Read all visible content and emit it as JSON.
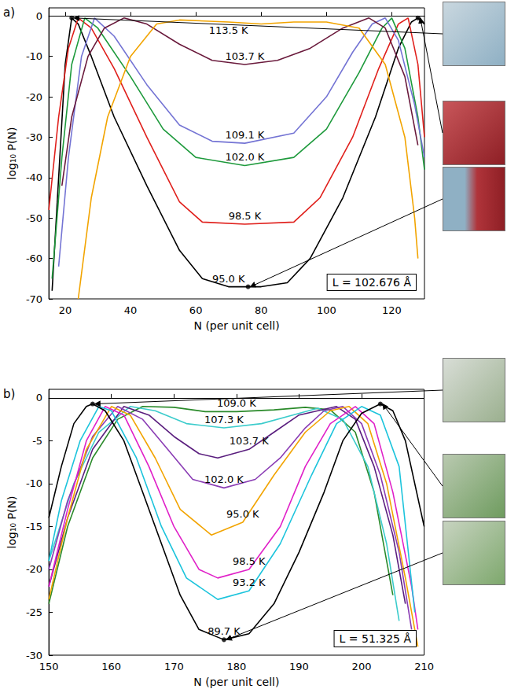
{
  "chart_data": [
    {
      "type": "line",
      "panel_label": "a)",
      "annotation": "L = 102.676 Å",
      "x_label": "N (per unit cell)",
      "y_label": "log₁₀ P(N)",
      "xlim": [
        15,
        130
      ],
      "xticks": [
        20,
        40,
        60,
        80,
        100,
        120
      ],
      "ylim": [
        -70,
        2
      ],
      "yticks": [
        -70,
        -60,
        -50,
        -40,
        -30,
        -20,
        -10,
        0
      ],
      "grid": false,
      "data_labels": false,
      "series": [
        {
          "name": "95.0 K",
          "color": "#000000",
          "line_style": "solid",
          "x": [
            16,
            18,
            20,
            22,
            24,
            28,
            35,
            45,
            55,
            62,
            70,
            80,
            88,
            95,
            105,
            115,
            122,
            126,
            128,
            130
          ],
          "values": [
            -68,
            -40,
            -12,
            -0.5,
            -2,
            -10,
            -25,
            -42,
            -58,
            -65,
            -67,
            -67,
            -66,
            -60,
            -45,
            -25,
            -8,
            -1.5,
            -0.5,
            -2
          ]
        },
        {
          "name": "98.5 K",
          "color": "#e0201c",
          "line_style": "solid",
          "x": [
            15,
            18,
            21,
            24,
            28,
            35,
            45,
            55,
            62,
            75,
            90,
            98,
            108,
            116,
            122,
            125,
            128,
            130
          ],
          "values": [
            -48,
            -25,
            -8,
            -0.5,
            -3,
            -13,
            -30,
            -46,
            -51,
            -51.5,
            -51,
            -45,
            -30,
            -13,
            -2,
            -0.5,
            -12,
            -30
          ]
        },
        {
          "name": "102.0 K",
          "color": "#1e9a3c",
          "line_style": "solid",
          "x": [
            16,
            19,
            22,
            26,
            30,
            40,
            50,
            60,
            75,
            90,
            100,
            110,
            117,
            120,
            124,
            128,
            130
          ],
          "values": [
            -65,
            -35,
            -12,
            -0.5,
            -3,
            -15,
            -28,
            -35,
            -37,
            -35,
            -28,
            -14,
            -3,
            -0.5,
            -8,
            -25,
            -38
          ]
        },
        {
          "name": "109.1 K",
          "color": "#7474d4",
          "line_style": "solid",
          "x": [
            18,
            21,
            25,
            29,
            35,
            45,
            55,
            65,
            75,
            90,
            100,
            108,
            114,
            118,
            122,
            127,
            130
          ],
          "values": [
            -62,
            -35,
            -10,
            -0.5,
            -5,
            -17,
            -27,
            -31,
            -31.5,
            -29,
            -20,
            -9,
            -2,
            -0.5,
            -6,
            -22,
            -35
          ]
        },
        {
          "name": "103.7 K",
          "color": "#6a1a3c",
          "line_style": "solid",
          "x": [
            19,
            22,
            27,
            32,
            38,
            45,
            55,
            65,
            75,
            85,
            95,
            105,
            113,
            118,
            124,
            128
          ],
          "values": [
            -42,
            -25,
            -10,
            -3,
            -0.5,
            -2,
            -7,
            -11,
            -12,
            -11,
            -8,
            -3,
            -0.5,
            -3,
            -15,
            -32
          ]
        },
        {
          "name": "113.5 K",
          "color": "#f2a400",
          "line_style": "solid",
          "x": [
            24,
            28,
            33,
            40,
            48,
            55,
            70,
            80,
            90,
            100,
            110,
            118,
            124,
            127,
            128
          ],
          "values": [
            -70,
            -45,
            -25,
            -10,
            -2,
            -1,
            -1.5,
            -2,
            -1.5,
            -1.5,
            -3,
            -12,
            -30,
            -50,
            -60
          ]
        }
      ],
      "points": {
        "color": "#000000",
        "marker": "circle",
        "x": [
          22,
          128,
          76
        ],
        "values": [
          -0.5,
          -0.5,
          -67
        ]
      }
    },
    {
      "type": "line",
      "panel_label": "b)",
      "annotation": "L = 51.325 Å",
      "x_label": "N (per unit cell)",
      "y_label": "log₁₀ P(N)",
      "xlim": [
        150,
        210
      ],
      "xticks": [
        150,
        160,
        170,
        180,
        190,
        200,
        210
      ],
      "ylim": [
        -30,
        1
      ],
      "yticks": [
        -30,
        -25,
        -20,
        -15,
        -10,
        -5,
        0
      ],
      "grid": false,
      "data_labels": false,
      "series": [
        {
          "name": "109.0 K",
          "color": "#2a8a2a",
          "line_style": "solid",
          "x": [
            150,
            153,
            157,
            161,
            165,
            170,
            175,
            180,
            186,
            191,
            195,
            199,
            202,
            205
          ],
          "values": [
            -24,
            -15,
            -7,
            -2.5,
            -1,
            -1.1,
            -1.6,
            -1.6,
            -1.4,
            -1.1,
            -1.4,
            -4,
            -11,
            -23
          ]
        },
        {
          "name": "107.3 K",
          "color": "#3ccccc",
          "line_style": "solid",
          "x": [
            150,
            154,
            158,
            163,
            167,
            172,
            178,
            184,
            189,
            193,
            197,
            201,
            204,
            206
          ],
          "values": [
            -19,
            -10,
            -4,
            -1,
            -1.5,
            -3,
            -3.5,
            -3,
            -2,
            -1.2,
            -2.5,
            -8,
            -17,
            -26
          ]
        },
        {
          "name": "103.7 K",
          "color": "#5a1e7e",
          "line_style": "solid",
          "x": [
            150,
            153,
            157,
            162,
            166,
            170,
            174,
            177,
            182,
            186,
            190,
            196,
            199,
            202,
            205,
            207
          ],
          "values": [
            -22,
            -14,
            -6,
            -1,
            -2,
            -4.5,
            -6.5,
            -7,
            -6,
            -4,
            -2,
            -1,
            -2.5,
            -8,
            -16,
            -24
          ]
        },
        {
          "name": "102.0 K",
          "color": "#8a3cb4",
          "line_style": "solid",
          "x": [
            150,
            153,
            157,
            161,
            165,
            169,
            173,
            178,
            183,
            187,
            191,
            194,
            197,
            200,
            203,
            206,
            208
          ],
          "values": [
            -20,
            -12,
            -4.5,
            -1,
            -2.5,
            -6,
            -9.5,
            -10.5,
            -9.5,
            -7,
            -3.5,
            -1.5,
            -1,
            -3,
            -9,
            -18,
            -27
          ]
        },
        {
          "name": "95.0 K",
          "color": "#f2a400",
          "line_style": "solid",
          "x": [
            150,
            153,
            156,
            160,
            163,
            167,
            171,
            176,
            181,
            186,
            191,
            195,
            198,
            201,
            204,
            207,
            209
          ],
          "values": [
            -23.5,
            -14,
            -6,
            -1,
            -2,
            -7,
            -13,
            -16,
            -14.5,
            -9,
            -4,
            -1.5,
            -1,
            -3,
            -10,
            -21,
            -29
          ]
        },
        {
          "name": "98.5 K",
          "color": "#e020c8",
          "line_style": "solid",
          "x": [
            150,
            153,
            156,
            159,
            162,
            166,
            170,
            174,
            177,
            182,
            187,
            191,
            195,
            199,
            202,
            205,
            208,
            209
          ],
          "values": [
            -22,
            -13,
            -5,
            -1,
            -2,
            -8,
            -15,
            -20,
            -21,
            -20,
            -15,
            -8,
            -3,
            -1,
            -3,
            -11,
            -22,
            -27
          ]
        },
        {
          "name": "93.2 K",
          "color": "#1cc4dc",
          "line_style": "solid",
          "x": [
            150,
            152,
            155,
            158,
            160,
            164,
            168,
            172,
            177,
            182,
            187,
            192,
            196,
            200,
            203,
            206,
            208.5
          ],
          "values": [
            -19,
            -12,
            -5,
            -1,
            -1.5,
            -7,
            -15,
            -21,
            -23.5,
            -22.5,
            -17,
            -9,
            -3,
            -1,
            -2,
            -8,
            -25
          ]
        },
        {
          "name": "89.7 K",
          "color": "#000000",
          "line_style": "solid",
          "x": [
            150,
            152,
            154,
            156,
            157,
            159,
            162,
            165,
            168,
            171,
            174,
            178,
            182,
            186,
            190,
            194,
            197,
            200,
            203,
            205,
            207,
            210
          ],
          "values": [
            -14,
            -8,
            -3,
            -1,
            -0.7,
            -1.5,
            -5,
            -11,
            -17,
            -23,
            -27,
            -28.2,
            -27.5,
            -24,
            -18,
            -11,
            -5,
            -1.8,
            -0.7,
            -1.5,
            -5,
            -15
          ]
        }
      ],
      "points": {
        "color": "#000000",
        "marker": "circle",
        "x": [
          157,
          203,
          178
        ],
        "values": [
          -0.7,
          -0.7,
          -28.2
        ]
      }
    }
  ]
}
